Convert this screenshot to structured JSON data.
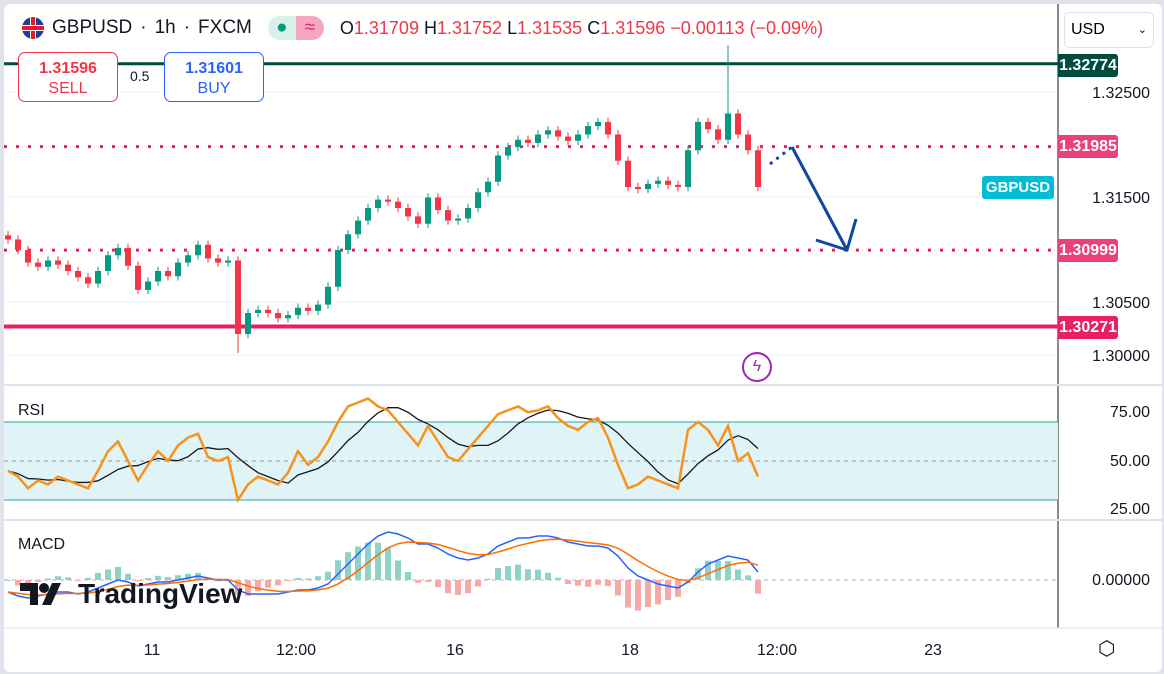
{
  "header": {
    "symbol": "GBPUSD",
    "interval": "1h",
    "exchange": "FXCM",
    "separator": "·",
    "open_label": "O",
    "open": "1.31709",
    "high_label": "H",
    "high": "1.31752",
    "low_label": "L",
    "low": "1.31535",
    "close_label": "C",
    "close": "1.31596",
    "change": "−0.00113 (−0.09%)"
  },
  "trade": {
    "sell_price": "1.31596",
    "sell_label": "SELL",
    "spread": "0.5",
    "buy_price": "1.31601",
    "buy_label": "BUY"
  },
  "currency_select": "USD",
  "colors": {
    "up": "#089981",
    "down": "#f23645",
    "level": "#e91e63",
    "resistance_top": "#004d40",
    "rsi": "#f7931a",
    "rsi_band": "#e0f4f8",
    "macd": "#2962ff",
    "signal": "#ff6d00",
    "symbol_tag": "#00bcd4",
    "arrow": "#0d47a1"
  },
  "price_axis": {
    "ticks": [
      "1.32500",
      "1.31500",
      "1.30500",
      "1.30000"
    ],
    "levels": [
      {
        "value": "1.32774",
        "style": "solid-dark"
      },
      {
        "value": "1.31985",
        "style": "dotted"
      },
      {
        "value": "1.30999",
        "style": "dotted"
      },
      {
        "value": "1.30271",
        "style": "solid"
      }
    ],
    "symbol_tag": "GBPUSD"
  },
  "rsi": {
    "title": "RSI",
    "ticks": [
      "75.00",
      "50.00",
      "25.00"
    ]
  },
  "macd": {
    "title": "MACD",
    "ticks": [
      "0.00000"
    ]
  },
  "time_axis": [
    "11",
    "12:00",
    "16",
    "18",
    "12:00",
    "23"
  ],
  "logo": "TradingView",
  "chart_data": {
    "type": "candlestick",
    "price_range": [
      1.2997,
      1.33
    ],
    "closes": [
      1.311,
      1.31,
      1.3088,
      1.3084,
      1.309,
      1.3086,
      1.308,
      1.3074,
      1.3068,
      1.308,
      1.3095,
      1.3102,
      1.3085,
      1.3062,
      1.307,
      1.308,
      1.3075,
      1.3088,
      1.3095,
      1.3105,
      1.3092,
      1.3088,
      1.309,
      1.302,
      1.304,
      1.3043,
      1.304,
      1.3035,
      1.3038,
      1.3045,
      1.3042,
      1.3048,
      1.3065,
      1.31,
      1.3115,
      1.3128,
      1.314,
      1.3148,
      1.3146,
      1.314,
      1.3132,
      1.3125,
      1.315,
      1.3138,
      1.3128,
      1.313,
      1.314,
      1.3155,
      1.3165,
      1.319,
      1.3198,
      1.3205,
      1.3202,
      1.321,
      1.3214,
      1.3208,
      1.3204,
      1.321,
      1.3218,
      1.3222,
      1.321,
      1.3185,
      1.316,
      1.3158,
      1.3163,
      1.3166,
      1.3162,
      1.316,
      1.3195,
      1.3222,
      1.3215,
      1.3205,
      1.323,
      1.321,
      1.3195,
      1.316
    ],
    "extremes": [
      {
        "index": 72,
        "high": 1.3295
      },
      {
        "index": 23,
        "low": 1.3002
      }
    ],
    "rsi_values": [
      45,
      42,
      36,
      40,
      38,
      42,
      40,
      38,
      36,
      45,
      55,
      60,
      50,
      40,
      48,
      55,
      50,
      58,
      62,
      64,
      52,
      50,
      52,
      30,
      38,
      42,
      40,
      38,
      44,
      55,
      48,
      52,
      60,
      70,
      78,
      80,
      82,
      78,
      76,
      70,
      64,
      58,
      68,
      60,
      52,
      50,
      56,
      62,
      68,
      74,
      76,
      78,
      75,
      76,
      78,
      72,
      68,
      66,
      70,
      72,
      62,
      48,
      36,
      38,
      42,
      40,
      38,
      36,
      66,
      70,
      66,
      58,
      68,
      50,
      54,
      42
    ],
    "rsi_band": [
      30,
      70
    ],
    "macd_x1e4": [
      -6,
      -8,
      -9,
      -8,
      -7,
      -6,
      -6,
      -7,
      -6,
      -4,
      -2,
      0,
      -1,
      -3,
      -2,
      -1,
      -1,
      0,
      1,
      2,
      1,
      0,
      0,
      -5,
      -7,
      -7,
      -7,
      -7,
      -6,
      -5,
      -5,
      -4,
      -2,
      3,
      8,
      13,
      18,
      22,
      24,
      23,
      21,
      18,
      18,
      16,
      13,
      11,
      10,
      11,
      13,
      17,
      19,
      21,
      21,
      22,
      22,
      21,
      19,
      18,
      17,
      17,
      16,
      12,
      6,
      2,
      0,
      -2,
      -3,
      -4,
      -1,
      4,
      8,
      10,
      12,
      11,
      10,
      4
    ]
  }
}
